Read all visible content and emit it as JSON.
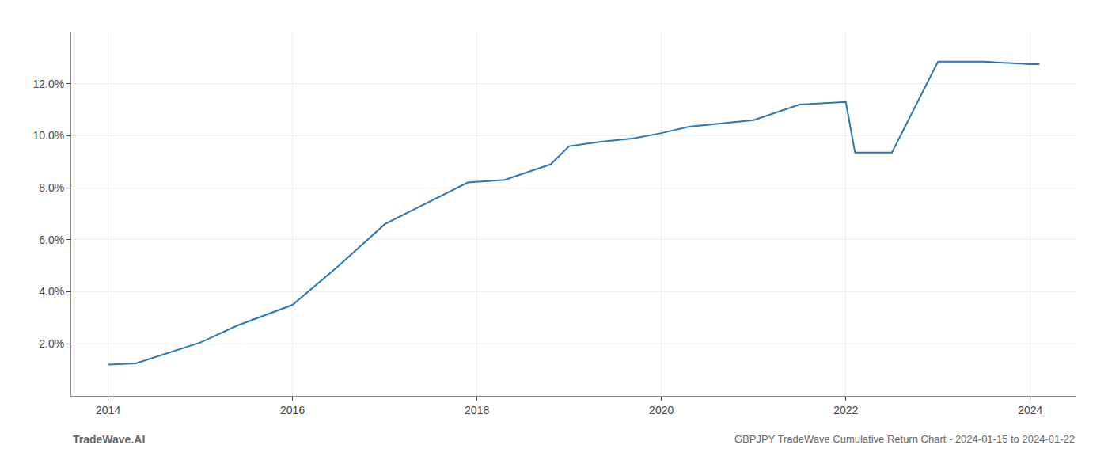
{
  "chart_data": {
    "type": "line",
    "title": "GBPJPY TradeWave Cumulative Return Chart - 2024-01-15 to 2024-01-22",
    "annotations": [
      "TradeWave.AI"
    ],
    "x": [
      2014.0,
      2014.3,
      2015.0,
      2015.4,
      2016.0,
      2016.5,
      2017.0,
      2017.5,
      2017.9,
      2018.3,
      2018.8,
      2019.0,
      2019.3,
      2019.7,
      2020.0,
      2020.3,
      2020.7,
      2021.0,
      2021.5,
      2022.0,
      2022.1,
      2022.5,
      2023.0,
      2023.5,
      2024.0,
      2024.1
    ],
    "values": [
      1.2,
      1.25,
      2.05,
      2.7,
      3.5,
      5.0,
      6.6,
      7.5,
      8.2,
      8.3,
      8.9,
      9.6,
      9.75,
      9.9,
      10.1,
      10.35,
      10.5,
      10.6,
      11.2,
      11.3,
      9.35,
      9.35,
      12.85,
      12.85,
      12.75,
      12.75
    ],
    "color": "#2878b5",
    "xlim": [
      2013.6,
      2024.5
    ],
    "ylim": [
      0,
      14.0
    ],
    "xticks": [
      2014,
      2016,
      2018,
      2020,
      2022,
      2024
    ],
    "yticks": [
      {
        "value": 2.0,
        "label": "2.0%"
      },
      {
        "value": 4.0,
        "label": "4.0%"
      },
      {
        "value": 6.0,
        "label": "6.0%"
      },
      {
        "value": 8.0,
        "label": "8.0%"
      },
      {
        "value": 10.0,
        "label": "10.0%"
      },
      {
        "value": 12.0,
        "label": "12.0%"
      }
    ],
    "grid": true
  }
}
